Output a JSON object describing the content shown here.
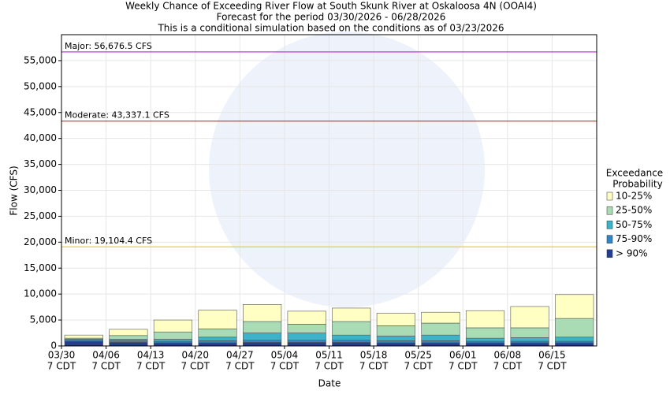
{
  "chart_data": {
    "type": "stacked_bar",
    "title": "Weekly Chance of Exceeding River Flow at South Skunk River at Oskaloosa 4N (OOAI4)",
    "subtitle": "Forecast for the period 03/30/2026 - 06/28/2026",
    "note": "This is a conditional simulation based on the conditions as of 03/23/2026",
    "x_label": "Date",
    "y_label": "Flow (CFS)",
    "categories": [
      "03/30",
      "04/06",
      "04/13",
      "04/20",
      "04/27",
      "05/04",
      "05/11",
      "05/18",
      "05/25",
      "06/01",
      "06/08",
      "06/15"
    ],
    "time_label": "7 CDT",
    "legend_title": [
      "Exceedance",
      "Probability"
    ],
    "series": [
      {
        "name": "> 90%",
        "color": "#233d8f",
        "values": [
          900,
          700,
          600,
          600,
          700,
          700,
          700,
          600,
          600,
          600,
          600,
          600
        ]
      },
      {
        "name": "75-90%",
        "color": "#2f86c4",
        "values": [
          200,
          300,
          300,
          400,
          400,
          400,
          400,
          400,
          400,
          300,
          300,
          300
        ]
      },
      {
        "name": "50-75%",
        "color": "#3cb3c8",
        "values": [
          200,
          300,
          400,
          700,
          1400,
          1400,
          1000,
          900,
          1100,
          600,
          700,
          800
        ]
      },
      {
        "name": "25-50%",
        "color": "#a9dcb4",
        "values": [
          200,
          700,
          1400,
          1600,
          2200,
          1700,
          2600,
          2000,
          2300,
          2000,
          1900,
          3600
        ]
      },
      {
        "name": "10-25%",
        "color": "#ffffc4",
        "values": [
          600,
          1200,
          2300,
          3600,
          3300,
          2500,
          2600,
          2400,
          2100,
          3300,
          4100,
          4600
        ]
      }
    ],
    "thresholds": [
      {
        "label": "Major: 56,676.5 CFS",
        "value": 56676.5,
        "color": "#cc33cc"
      },
      {
        "label": "Moderate: 43,337.1 CFS",
        "value": 43337.1,
        "color": "#dd2222"
      },
      {
        "label": "Minor: 19,104.4 CFS",
        "value": 19104.4,
        "color": "#eecc33"
      }
    ],
    "ylim": [
      0,
      60000
    ],
    "yticks": [
      0,
      {
        "value": 5000,
        "label": "5,000"
      },
      {
        "value": 10000,
        "label": "10,000"
      },
      {
        "value": 15000,
        "label": "15,000"
      },
      {
        "value": 20000,
        "label": "20,000"
      },
      {
        "value": 25000,
        "label": "25,000"
      },
      {
        "value": 30000,
        "label": "30,000"
      },
      {
        "value": 35000,
        "label": "35,000"
      },
      {
        "value": 40000,
        "label": "40,000"
      },
      {
        "value": 45000,
        "label": "45,000"
      },
      {
        "value": 50000,
        "label": "50,000"
      },
      {
        "value": 55000,
        "label": "55,000"
      }
    ],
    "grid": true
  }
}
